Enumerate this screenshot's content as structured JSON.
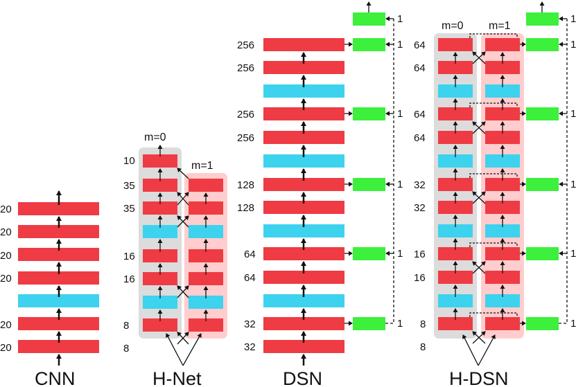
{
  "colors": {
    "conv": "#ef3b44",
    "pool": "#3dd2ee",
    "output": "#3cf03c",
    "groupGray": "#dcdcdc",
    "groupPink": "#ffcdcd",
    "arrow": "#111111"
  },
  "titles": {
    "cnn": "CNN",
    "hnet": "H-Net",
    "dsn": "DSN",
    "hdsn": "H-DSN"
  },
  "groups": {
    "hnet_m0": "m=0",
    "hnet_m1": "m=1",
    "hdsn_m0": "m=0",
    "hdsn_m1": "m=1"
  },
  "cnn": {
    "labels": [
      "20",
      "20",
      "20",
      "20",
      "20",
      "20"
    ]
  },
  "hnet": {
    "labels": [
      "10",
      "35",
      "35",
      "16",
      "16",
      "8",
      "8"
    ]
  },
  "dsn": {
    "labels": [
      "256",
      "256",
      "256",
      "256",
      "128",
      "128",
      "64",
      "64",
      "32",
      "32"
    ],
    "output_labels": [
      "1",
      "1",
      "1",
      "1",
      "1",
      "1"
    ]
  },
  "hdsn": {
    "labels": [
      "64",
      "64",
      "64",
      "64",
      "32",
      "32",
      "16",
      "16",
      "8",
      "8"
    ],
    "output_labels": [
      "1",
      "1",
      "1",
      "1",
      "1",
      "1"
    ]
  }
}
